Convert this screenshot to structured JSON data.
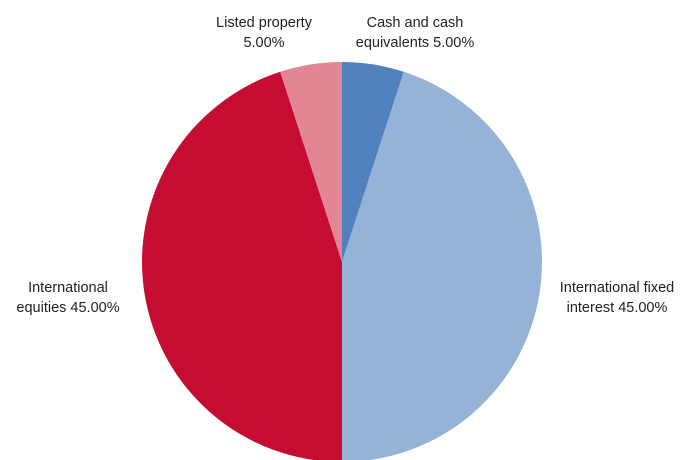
{
  "chart_data": {
    "type": "pie",
    "title": "",
    "slices": [
      {
        "label_lines": [
          "Cash and cash",
          "equivalents 5.00%"
        ],
        "value": 5.0,
        "color": "#4f81bd",
        "name": "cash-and-cash-equivalents"
      },
      {
        "label_lines": [
          "International fixed",
          "interest 45.00%"
        ],
        "value": 45.0,
        "color": "#95b3d7",
        "name": "international-fixed-interest"
      },
      {
        "label_lines": [
          "International",
          "equities 45.00%"
        ],
        "value": 45.0,
        "color": "#c50d32",
        "name": "international-equities"
      },
      {
        "label_lines": [
          "Listed property",
          "5.00%"
        ],
        "value": 5.0,
        "color": "#e38595",
        "name": "listed-property"
      }
    ],
    "legend": "none"
  }
}
